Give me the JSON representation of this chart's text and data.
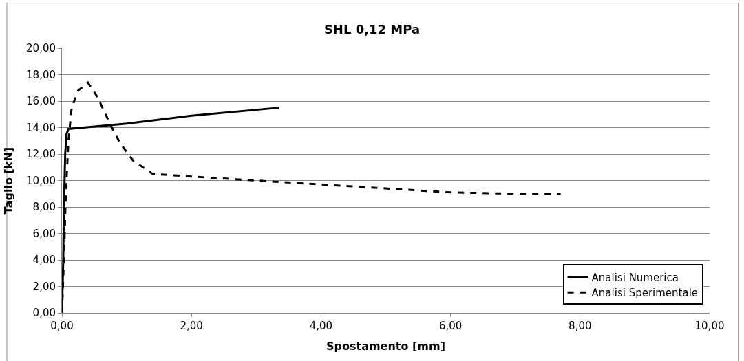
{
  "chart_data": {
    "type": "line",
    "title": "SHL 0,12 MPa",
    "xlabel": "Spostamento [mm]",
    "ylabel": "Taglio [kN]",
    "series": [
      {
        "name": "Analisi Numerica",
        "color": "#000000",
        "line_style": "solid",
        "x": [
          0,
          0.02,
          0.03,
          0.05,
          0.07,
          0.1,
          1.0,
          2.0,
          3.35
        ],
        "values": [
          0,
          4,
          8,
          12,
          13.5,
          13.9,
          14.3,
          14.9,
          15.5
        ]
      },
      {
        "name": "Analisi Sperimentale",
        "color": "#000000",
        "line_style": "dashed",
        "x": [
          0,
          0.03,
          0.06,
          0.1,
          0.15,
          0.25,
          0.4,
          0.55,
          0.75,
          0.9,
          1.1,
          1.4,
          2.0,
          3.0,
          4.0,
          5.0,
          6.0,
          7.0,
          7.7
        ],
        "values": [
          0,
          4,
          9,
          13,
          15.5,
          16.8,
          17.4,
          16.3,
          14.2,
          12.8,
          11.5,
          10.5,
          10.3,
          10.0,
          9.7,
          9.4,
          9.1,
          9.0,
          9.0
        ]
      }
    ],
    "xlim": [
      0,
      10
    ],
    "xticks": [
      {
        "value": 0,
        "label": "0,00"
      },
      {
        "value": 2,
        "label": "2,00"
      },
      {
        "value": 4,
        "label": "4,00"
      },
      {
        "value": 6,
        "label": "6,00"
      },
      {
        "value": 8,
        "label": "8,00"
      },
      {
        "value": 10,
        "label": "10,00"
      }
    ],
    "ylim": [
      0,
      20
    ],
    "yticks": [
      {
        "value": 0,
        "label": "0,00"
      },
      {
        "value": 2,
        "label": "2,00"
      },
      {
        "value": 4,
        "label": "4,00"
      },
      {
        "value": 6,
        "label": "6,00"
      },
      {
        "value": 8,
        "label": "8,00"
      },
      {
        "value": 10,
        "label": "10,00"
      },
      {
        "value": 12,
        "label": "12,00"
      },
      {
        "value": 14,
        "label": "14,00"
      },
      {
        "value": 16,
        "label": "16,00"
      },
      {
        "value": 18,
        "label": "18,00"
      },
      {
        "value": 20,
        "label": "20,00"
      }
    ],
    "grid": "y",
    "legend": "bottom right",
    "marker": "none"
  }
}
